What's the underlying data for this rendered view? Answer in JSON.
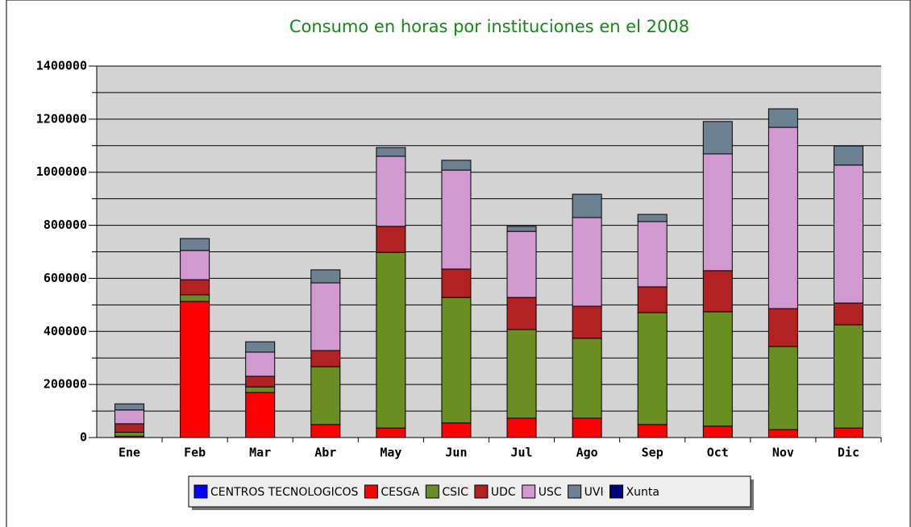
{
  "chart_data": {
    "type": "stacked-bar",
    "title": "Consumo en horas por instituciones en el 2008",
    "categories": [
      "Ene",
      "Feb",
      "Mar",
      "Abr",
      "May",
      "Jun",
      "Jul",
      "Ago",
      "Sep",
      "Oct",
      "Nov",
      "Dic"
    ],
    "series": [
      {
        "name": "CENTROS TECNOLOGICOS",
        "color": "#0000ff",
        "values": [
          0,
          0,
          0,
          0,
          0,
          0,
          0,
          0,
          0,
          0,
          0,
          0
        ]
      },
      {
        "name": "CESGA",
        "color": "#ff0000",
        "values": [
          5000,
          513000,
          170000,
          49000,
          36000,
          55000,
          73000,
          73000,
          49000,
          43000,
          30000,
          36000
        ]
      },
      {
        "name": "CSIC",
        "color": "#6b8e23",
        "values": [
          15000,
          25000,
          21000,
          218000,
          662000,
          473000,
          334000,
          301000,
          422000,
          431000,
          313000,
          389000
        ]
      },
      {
        "name": "UDC",
        "color": "#b22222",
        "values": [
          32000,
          57000,
          40000,
          61000,
          98000,
          107000,
          121000,
          121000,
          97000,
          155000,
          143000,
          82000
        ]
      },
      {
        "name": "USC",
        "color": "#d09ad0",
        "values": [
          52000,
          110000,
          91000,
          255000,
          264000,
          373000,
          249000,
          334000,
          246000,
          440000,
          683000,
          520000
        ]
      },
      {
        "name": "UVI",
        "color": "#6c8292",
        "values": [
          23000,
          45000,
          39000,
          49000,
          33000,
          37000,
          19000,
          88000,
          27000,
          122000,
          70000,
          72000
        ]
      },
      {
        "name": "Xunta",
        "color": "#000080",
        "values": [
          0,
          0,
          0,
          0,
          0,
          0,
          0,
          0,
          0,
          0,
          0,
          0
        ]
      }
    ],
    "ylim": [
      0,
      1400000
    ],
    "yticks": [
      0,
      200000,
      400000,
      600000,
      800000,
      1000000,
      1200000,
      1400000
    ],
    "yticks_minor": [
      100000,
      300000,
      500000,
      700000,
      900000,
      1100000,
      1300000
    ],
    "grid": true,
    "legend": "bottom"
  }
}
